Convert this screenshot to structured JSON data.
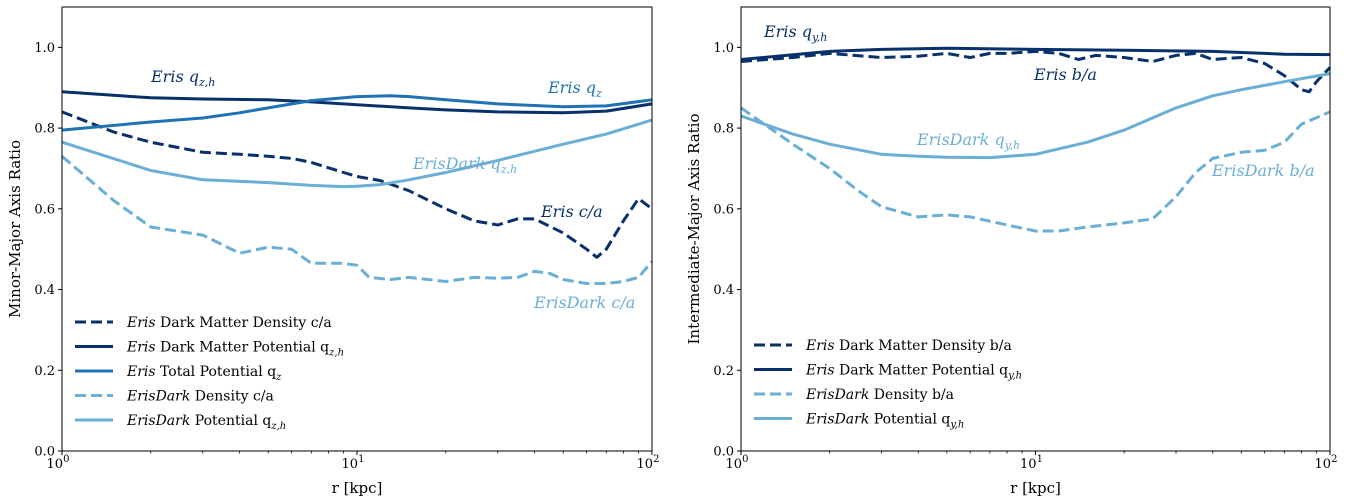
{
  "colors": {
    "eris_density": "#08306b",
    "eris_dm_potential": "#08306b",
    "eris_total": "#2171b5",
    "erisdark": "#6baed6"
  },
  "chart_data": [
    {
      "type": "line",
      "xscale": "log",
      "xlim": [
        1,
        100
      ],
      "ylim": [
        0.0,
        1.1
      ],
      "xlabel": "r [kpc]",
      "ylabel": "Minor-Major Axis Ratio",
      "xticks": [
        "10^0",
        "10^1",
        "10^2"
      ],
      "yticks": [
        "0.0",
        "0.2",
        "0.4",
        "0.6",
        "0.8",
        "1.0"
      ],
      "legend_position": "lower-left",
      "series": [
        {
          "key": "eris_density",
          "name": "Eris Dark Matter Density c/a",
          "legend_italic": "Eris",
          "legend_rest": " Dark Matter Density c/a",
          "color": "#08306b",
          "dash": "dashed",
          "x": [
            1,
            1.5,
            2,
            3,
            4,
            5,
            6,
            7,
            9,
            10,
            12,
            15,
            20,
            25,
            30,
            35,
            40,
            50,
            60,
            65,
            70,
            80,
            90,
            100
          ],
          "y": [
            0.84,
            0.79,
            0.765,
            0.74,
            0.735,
            0.73,
            0.725,
            0.715,
            0.69,
            0.68,
            0.67,
            0.645,
            0.6,
            0.57,
            0.56,
            0.575,
            0.575,
            0.54,
            0.5,
            0.48,
            0.5,
            0.57,
            0.625,
            0.6
          ]
        },
        {
          "key": "eris_dm_pot",
          "name": "Eris Dark Matter Potential q_z,h",
          "legend_italic": "Eris",
          "legend_rest": " Dark Matter Potential q",
          "legend_sub": "z,h",
          "color": "#08306b",
          "dash": "solid",
          "x": [
            1,
            2,
            3,
            5,
            7,
            10,
            15,
            20,
            30,
            50,
            70,
            100
          ],
          "y": [
            0.89,
            0.875,
            0.872,
            0.87,
            0.865,
            0.858,
            0.85,
            0.845,
            0.84,
            0.838,
            0.842,
            0.86
          ]
        },
        {
          "key": "eris_total",
          "name": "Eris Total Potential q_z",
          "legend_italic": "Eris",
          "legend_rest": " Total Potential q",
          "legend_sub": "z",
          "color": "#2171b5",
          "dash": "solid",
          "x": [
            1,
            2,
            3,
            4,
            5,
            7,
            10,
            13,
            15,
            20,
            30,
            50,
            70,
            100
          ],
          "y": [
            0.795,
            0.815,
            0.825,
            0.838,
            0.85,
            0.868,
            0.878,
            0.88,
            0.878,
            0.87,
            0.86,
            0.853,
            0.855,
            0.87
          ]
        },
        {
          "key": "erisdark_density",
          "name": "ErisDark Density c/a",
          "legend_italic": "ErisDark",
          "legend_rest": " Density c/a",
          "color": "#6baed6",
          "dash": "dashed",
          "x": [
            1,
            1.5,
            2,
            3,
            4,
            5,
            6,
            7,
            9,
            10,
            11,
            13,
            15,
            20,
            25,
            30,
            35,
            40,
            45,
            50,
            60,
            70,
            80,
            90,
            100
          ],
          "y": [
            0.73,
            0.62,
            0.555,
            0.535,
            0.49,
            0.505,
            0.5,
            0.465,
            0.465,
            0.46,
            0.43,
            0.425,
            0.43,
            0.42,
            0.43,
            0.428,
            0.43,
            0.445,
            0.44,
            0.425,
            0.415,
            0.415,
            0.42,
            0.43,
            0.47
          ]
        },
        {
          "key": "erisdark_pot",
          "name": "ErisDark Potential q_z,h",
          "legend_italic": "ErisDark",
          "legend_rest": " Potential q",
          "legend_sub": "z,h",
          "color": "#6baed6",
          "dash": "solid",
          "x": [
            1,
            2,
            3,
            5,
            7,
            9,
            10,
            12,
            15,
            20,
            30,
            50,
            70,
            100
          ],
          "y": [
            0.765,
            0.695,
            0.672,
            0.665,
            0.658,
            0.655,
            0.656,
            0.66,
            0.672,
            0.69,
            0.72,
            0.76,
            0.785,
            0.82
          ]
        }
      ],
      "annotations": [
        {
          "name": "Eris",
          "sub": "q",
          "subscript": "z,h",
          "color": "#08306b"
        },
        {
          "name": "Eris",
          "sub": "q",
          "subscript": "z",
          "color": "#2171b5"
        },
        {
          "name": "ErisDark",
          "sub": "q",
          "subscript": "z,h",
          "color": "#6baed6"
        },
        {
          "name": "Eris",
          "sub": "c/a",
          "subscript": "",
          "color": "#08306b"
        },
        {
          "name": "ErisDark",
          "sub": "c/a",
          "subscript": "",
          "color": "#6baed6"
        }
      ]
    },
    {
      "type": "line",
      "xscale": "log",
      "xlim": [
        1,
        100
      ],
      "ylim": [
        0.0,
        1.1
      ],
      "xlabel": "r [kpc]",
      "ylabel": "Intermediate-Major Axis Ratio",
      "xticks": [
        "10^0",
        "10^1",
        "10^2"
      ],
      "yticks": [
        "0.0",
        "0.2",
        "0.4",
        "0.6",
        "0.8",
        "1.0"
      ],
      "legend_position": "lower-left",
      "series": [
        {
          "key": "eris_density",
          "name": "Eris Dark Matter Density b/a",
          "legend_italic": "Eris",
          "legend_rest": " Dark Matter Density b/a",
          "color": "#08306b",
          "dash": "dashed",
          "x": [
            1,
            1.5,
            2,
            3,
            4,
            5,
            6,
            7,
            8,
            10,
            12,
            14,
            16,
            20,
            25,
            30,
            35,
            40,
            50,
            60,
            70,
            80,
            85,
            90,
            100
          ],
          "y": [
            0.965,
            0.975,
            0.985,
            0.975,
            0.978,
            0.985,
            0.975,
            0.985,
            0.985,
            0.99,
            0.985,
            0.97,
            0.98,
            0.975,
            0.965,
            0.98,
            0.985,
            0.97,
            0.975,
            0.96,
            0.93,
            0.895,
            0.89,
            0.915,
            0.95
          ]
        },
        {
          "key": "eris_dm_pot",
          "name": "Eris Dark Matter Potential q_y,h",
          "legend_italic": "Eris",
          "legend_rest": " Dark Matter Potential q",
          "legend_sub": "y,h",
          "color": "#08306b",
          "dash": "solid",
          "x": [
            1,
            2,
            3,
            5,
            10,
            20,
            40,
            70,
            100
          ],
          "y": [
            0.97,
            0.99,
            0.995,
            0.998,
            0.995,
            0.993,
            0.99,
            0.983,
            0.982
          ]
        },
        {
          "key": "erisdark_density",
          "name": "ErisDark Density b/a",
          "legend_italic": "ErisDark",
          "legend_rest": " Density b/a",
          "color": "#6baed6",
          "dash": "dashed",
          "x": [
            1,
            1.5,
            2,
            2.5,
            3,
            4,
            5,
            6,
            8,
            10,
            12,
            15,
            20,
            25,
            30,
            35,
            40,
            50,
            60,
            70,
            80,
            100
          ],
          "y": [
            0.85,
            0.76,
            0.7,
            0.645,
            0.605,
            0.58,
            0.585,
            0.58,
            0.56,
            0.545,
            0.545,
            0.555,
            0.565,
            0.575,
            0.63,
            0.69,
            0.725,
            0.74,
            0.745,
            0.765,
            0.81,
            0.84
          ]
        },
        {
          "key": "erisdark_pot",
          "name": "ErisDark Potential q_y,h",
          "legend_italic": "ErisDark",
          "legend_rest": " Potential q",
          "legend_sub": "y,h",
          "color": "#6baed6",
          "dash": "solid",
          "x": [
            1,
            1.5,
            2,
            3,
            4,
            5,
            7,
            10,
            15,
            20,
            30,
            40,
            50,
            70,
            100
          ],
          "y": [
            0.83,
            0.785,
            0.76,
            0.735,
            0.73,
            0.728,
            0.727,
            0.735,
            0.765,
            0.795,
            0.85,
            0.88,
            0.895,
            0.915,
            0.935
          ]
        }
      ],
      "annotations": [
        {
          "name": "Eris",
          "sub": "q",
          "subscript": "y,h",
          "color": "#08306b"
        },
        {
          "name": "Eris",
          "sub": "b/a",
          "subscript": "",
          "color": "#08306b"
        },
        {
          "name": "ErisDark",
          "sub": "q",
          "subscript": "y,h",
          "color": "#6baed6"
        },
        {
          "name": "ErisDark",
          "sub": "b/a",
          "subscript": "",
          "color": "#6baed6"
        }
      ]
    }
  ]
}
